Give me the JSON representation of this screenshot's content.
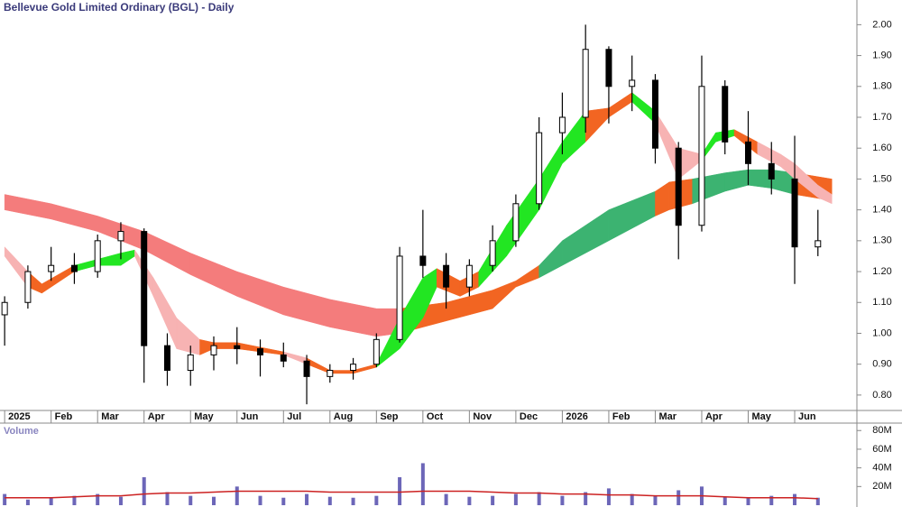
{
  "chart_data": {
    "type": "candlestick",
    "title": "Bellevue Gold Limited Ordinary (BGL) - Daily",
    "xlim": [
      -0.1,
      18.3
    ],
    "xticks": [
      {
        "value": 0,
        "label": "2025"
      },
      {
        "value": 1,
        "label": "Feb"
      },
      {
        "value": 2,
        "label": "Mar"
      },
      {
        "value": 3,
        "label": "Apr"
      },
      {
        "value": 4,
        "label": "May"
      },
      {
        "value": 5,
        "label": "Jun"
      },
      {
        "value": 6,
        "label": "Jul"
      },
      {
        "value": 7,
        "label": "Aug"
      },
      {
        "value": 8,
        "label": "Sep"
      },
      {
        "value": 9,
        "label": "Oct"
      },
      {
        "value": 10,
        "label": "Nov"
      },
      {
        "value": 11,
        "label": "Dec"
      },
      {
        "value": 12,
        "label": "2026"
      },
      {
        "value": 13,
        "label": "Feb"
      },
      {
        "value": 14,
        "label": "Mar"
      },
      {
        "value": 15,
        "label": "Apr"
      },
      {
        "value": 16,
        "label": "May"
      },
      {
        "value": 17,
        "label": "Jun"
      }
    ],
    "ylim": [
      0.75,
      2.08
    ],
    "yticks": [
      {
        "value": 0.8,
        "label": "0.80"
      },
      {
        "value": 0.9,
        "label": "0.90"
      },
      {
        "value": 1.0,
        "label": "1.00"
      },
      {
        "value": 1.1,
        "label": "1.10"
      },
      {
        "value": 1.2,
        "label": "1.20"
      },
      {
        "value": 1.3,
        "label": "1.30"
      },
      {
        "value": 1.4,
        "label": "1.40"
      },
      {
        "value": 1.5,
        "label": "1.50"
      },
      {
        "value": 1.6,
        "label": "1.60"
      },
      {
        "value": 1.7,
        "label": "1.70"
      },
      {
        "value": 1.8,
        "label": "1.80"
      },
      {
        "value": 1.9,
        "label": "1.90"
      },
      {
        "value": 2.0,
        "label": "2.00"
      }
    ],
    "candle_color": "#000000",
    "x": [
      0,
      0.5,
      1,
      1.5,
      2,
      2.5,
      3,
      3.5,
      4,
      4.5,
      5,
      5.5,
      6,
      6.5,
      7,
      7.5,
      8,
      8.5,
      9,
      9.5,
      10,
      10.5,
      11,
      11.5,
      12,
      12.5,
      13,
      13.5,
      14,
      14.5,
      15,
      15.5,
      16,
      16.5,
      17,
      17.5
    ],
    "open": [
      1.06,
      1.1,
      1.2,
      1.22,
      1.2,
      1.3,
      1.33,
      0.96,
      0.88,
      0.93,
      0.96,
      0.95,
      0.93,
      0.91,
      0.86,
      0.88,
      0.9,
      0.98,
      1.25,
      1.22,
      1.15,
      1.22,
      1.3,
      1.42,
      1.65,
      1.7,
      1.92,
      1.8,
      1.82,
      1.6,
      1.35,
      1.8,
      1.62,
      1.55,
      1.5,
      1.28
    ],
    "high": [
      1.12,
      1.22,
      1.28,
      1.26,
      1.32,
      1.36,
      1.34,
      1.0,
      0.96,
      0.99,
      1.02,
      0.98,
      0.97,
      0.93,
      0.9,
      0.92,
      1.0,
      1.28,
      1.4,
      1.26,
      1.24,
      1.35,
      1.45,
      1.7,
      1.78,
      2.0,
      1.93,
      1.9,
      1.84,
      1.62,
      1.9,
      1.82,
      1.72,
      1.62,
      1.64,
      1.4
    ],
    "low": [
      0.96,
      1.08,
      1.17,
      1.16,
      1.18,
      1.24,
      0.84,
      0.83,
      0.83,
      0.88,
      0.9,
      0.86,
      0.89,
      0.77,
      0.84,
      0.85,
      0.89,
      0.97,
      1.18,
      1.08,
      1.12,
      1.2,
      1.28,
      1.4,
      1.58,
      1.65,
      1.68,
      1.72,
      1.55,
      1.24,
      1.33,
      1.58,
      1.48,
      1.45,
      1.16,
      1.25
    ],
    "close": [
      1.1,
      1.2,
      1.22,
      1.2,
      1.3,
      1.33,
      0.96,
      0.88,
      0.93,
      0.96,
      0.95,
      0.93,
      0.91,
      0.86,
      0.88,
      0.9,
      0.98,
      1.25,
      1.22,
      1.15,
      1.22,
      1.3,
      1.42,
      1.65,
      1.7,
      1.92,
      1.8,
      1.82,
      1.6,
      1.35,
      1.8,
      1.62,
      1.55,
      1.5,
      1.28,
      1.3
    ],
    "ribbons": [
      {
        "x": [
          0,
          1,
          2,
          3,
          4,
          5,
          6,
          7,
          8,
          8.5,
          9.5,
          10.5,
          11,
          11.5,
          12,
          13,
          14,
          14.3,
          14.8,
          15.5,
          16,
          16.5,
          17,
          17.8
        ],
        "upper": [
          1.45,
          1.42,
          1.38,
          1.33,
          1.26,
          1.2,
          1.15,
          1.11,
          1.08,
          1.08,
          1.1,
          1.14,
          1.17,
          1.22,
          1.3,
          1.4,
          1.46,
          1.49,
          1.5,
          1.52,
          1.53,
          1.53,
          1.52,
          1.5
        ],
        "lower": [
          1.4,
          1.37,
          1.33,
          1.27,
          1.19,
          1.12,
          1.06,
          1.02,
          0.99,
          1.0,
          1.04,
          1.08,
          1.15,
          1.18,
          1.22,
          1.3,
          1.38,
          1.4,
          1.42,
          1.46,
          1.48,
          1.47,
          1.45,
          1.43
        ],
        "colors": [
          "#f47c7c",
          "#f47c7c",
          "#f47c7c",
          "#f47c7c",
          "#f47c7c",
          "#f47c7c",
          "#f47c7c",
          "#f47c7c",
          "#f47c7c",
          "#f26522",
          "#f26522",
          "#f26522",
          "#f26522",
          "#3cb371",
          "#3cb371",
          "#3cb371",
          "#f26522",
          "#f26522",
          "#3cb371",
          "#3cb371",
          "#3cb371",
          "#3cb371",
          "#f26522",
          "#f26522"
        ]
      },
      {
        "x": [
          0,
          0.5,
          0.8,
          1.5,
          2,
          2.5,
          2.8,
          3.2,
          3.7,
          4.2,
          4.5,
          5,
          6,
          6.5,
          7,
          7.5,
          8,
          8.5,
          9,
          9.3,
          9.8,
          10.2,
          10.8,
          11.5,
          12,
          12.5,
          13,
          13.5,
          14,
          14.5,
          15,
          15.3,
          15.7,
          16.2,
          16.7,
          17,
          17.5,
          17.8
        ],
        "upper": [
          1.28,
          1.2,
          1.16,
          1.22,
          1.24,
          1.26,
          1.27,
          1.18,
          1.05,
          0.98,
          0.97,
          0.97,
          0.94,
          0.92,
          0.88,
          0.88,
          0.9,
          1.05,
          1.18,
          1.21,
          1.17,
          1.2,
          1.35,
          1.5,
          1.62,
          1.72,
          1.73,
          1.78,
          1.72,
          1.6,
          1.58,
          1.65,
          1.66,
          1.62,
          1.58,
          1.55,
          1.48,
          1.45
        ],
        "lower": [
          1.25,
          1.15,
          1.13,
          1.2,
          1.22,
          1.22,
          1.25,
          1.12,
          0.95,
          0.93,
          0.95,
          0.95,
          0.93,
          0.9,
          0.87,
          0.87,
          0.89,
          0.95,
          1.05,
          1.15,
          1.12,
          1.15,
          1.25,
          1.4,
          1.55,
          1.62,
          1.7,
          1.75,
          1.68,
          1.5,
          1.56,
          1.62,
          1.64,
          1.58,
          1.54,
          1.5,
          1.44,
          1.42
        ],
        "colors": [
          "#f7b3b3",
          "#f26522",
          "#f26522",
          "#22e622",
          "#22e622",
          "#22e622",
          "#f7b3b3",
          "#f7b3b3",
          "#f7b3b3",
          "#f26522",
          "#f26522",
          "#f26522",
          "#f7b3b3",
          "#f26522",
          "#f26522",
          "#f26522",
          "#22e622",
          "#22e622",
          "#22e622",
          "#f26522",
          "#f26522",
          "#22e622",
          "#22e622",
          "#22e622",
          "#22e622",
          "#f26522",
          "#f26522",
          "#22e622",
          "#f7b3b3",
          "#f7b3b3",
          "#22e622",
          "#22e622",
          "#f26522",
          "#f7b3b3",
          "#f7b3b3",
          "#f7b3b3",
          "#f7b3b3",
          "#f7b3b3"
        ]
      }
    ],
    "volume": {
      "label": "Volume",
      "color": "#6c66b8",
      "avg_color": "#cc2222",
      "ylim": [
        0,
        87000000
      ],
      "yticks": [
        {
          "value": 20000000,
          "label": "20M"
        },
        {
          "value": 40000000,
          "label": "40M"
        },
        {
          "value": 60000000,
          "label": "60M"
        },
        {
          "value": 80000000,
          "label": "80M"
        }
      ],
      "values": [
        12000000,
        6000000,
        8000000,
        10000000,
        12000000,
        9000000,
        30000000,
        14000000,
        10000000,
        9000000,
        20000000,
        10000000,
        8000000,
        12000000,
        9000000,
        8000000,
        10000000,
        30000000,
        45000000,
        12000000,
        9000000,
        10000000,
        12000000,
        14000000,
        10000000,
        14000000,
        18000000,
        12000000,
        10000000,
        16000000,
        20000000,
        9000000,
        8000000,
        10000000,
        12000000,
        8000000
      ],
      "average": [
        8000000,
        8000000,
        8000000,
        9000000,
        10000000,
        10000000,
        12000000,
        13000000,
        13000000,
        14000000,
        15000000,
        15000000,
        15000000,
        15000000,
        14000000,
        14000000,
        14000000,
        14000000,
        15000000,
        15000000,
        15000000,
        14000000,
        13000000,
        13000000,
        12000000,
        12000000,
        11000000,
        11000000,
        10000000,
        10000000,
        10000000,
        9000000,
        8000000,
        8000000,
        8000000,
        7000000
      ]
    }
  }
}
